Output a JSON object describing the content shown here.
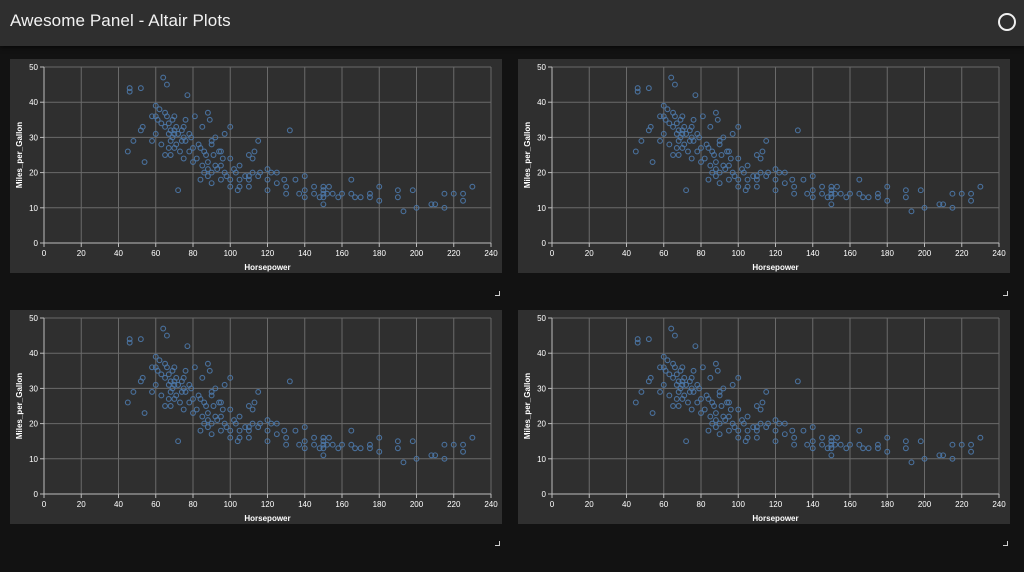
{
  "app": {
    "title": "Awesome Panel - Altair Plots"
  },
  "colors": {
    "header_bg": "#2f2f2f",
    "page_bg": "#121212",
    "card_bg": "#2f2f2f",
    "point": "#4c78a8",
    "grid": "#6a6a6a",
    "text": "#ffffff"
  },
  "icons": {
    "status": "circle-outline-icon",
    "resize": "resize-corner-icon"
  },
  "chart_data": {
    "type": "scatter",
    "xlabel": "Horsepower",
    "ylabel": "Miles_per_Gallon",
    "xlim": [
      0,
      240
    ],
    "ylim": [
      0,
      50
    ],
    "x_ticks": [
      0,
      20,
      40,
      60,
      80,
      100,
      120,
      140,
      160,
      180,
      200,
      220,
      240
    ],
    "y_ticks": [
      0,
      10,
      20,
      30,
      40,
      50
    ],
    "grid": true,
    "points": [
      [
        45,
        26
      ],
      [
        46,
        43
      ],
      [
        46,
        44
      ],
      [
        48,
        29
      ],
      [
        52,
        44
      ],
      [
        52,
        32
      ],
      [
        53,
        33
      ],
      [
        54,
        23
      ],
      [
        58,
        29
      ],
      [
        58,
        36
      ],
      [
        60,
        39
      ],
      [
        60,
        36
      ],
      [
        60,
        31
      ],
      [
        61,
        35
      ],
      [
        62,
        38
      ],
      [
        63,
        28
      ],
      [
        63,
        34
      ],
      [
        64,
        47
      ],
      [
        65,
        37
      ],
      [
        65,
        33
      ],
      [
        65,
        25
      ],
      [
        66,
        45
      ],
      [
        66,
        36
      ],
      [
        67,
        34
      ],
      [
        67,
        31
      ],
      [
        67,
        27
      ],
      [
        68,
        29
      ],
      [
        68,
        32
      ],
      [
        68,
        25
      ],
      [
        69,
        35
      ],
      [
        69,
        30
      ],
      [
        70,
        32
      ],
      [
        70,
        36
      ],
      [
        70,
        27
      ],
      [
        70,
        31
      ],
      [
        71,
        28
      ],
      [
        71,
        33
      ],
      [
        72,
        15
      ],
      [
        72,
        31
      ],
      [
        73,
        26
      ],
      [
        74,
        29
      ],
      [
        74,
        32
      ],
      [
        75,
        30
      ],
      [
        75,
        33
      ],
      [
        75,
        24
      ],
      [
        76,
        35
      ],
      [
        76,
        29
      ],
      [
        77,
        42
      ],
      [
        78,
        26
      ],
      [
        78,
        31
      ],
      [
        79,
        30
      ],
      [
        80,
        27
      ],
      [
        80,
        23
      ],
      [
        81,
        36
      ],
      [
        82,
        24
      ],
      [
        83,
        28
      ],
      [
        84,
        27
      ],
      [
        84,
        18
      ],
      [
        85,
        33
      ],
      [
        85,
        22
      ],
      [
        86,
        26
      ],
      [
        86,
        20
      ],
      [
        87,
        25
      ],
      [
        88,
        37
      ],
      [
        88,
        23
      ],
      [
        88,
        19
      ],
      [
        88,
        21
      ],
      [
        89,
        35
      ],
      [
        90,
        29
      ],
      [
        90,
        28
      ],
      [
        90,
        20
      ],
      [
        90,
        17
      ],
      [
        91,
        25
      ],
      [
        92,
        22
      ],
      [
        92,
        30
      ],
      [
        93,
        21
      ],
      [
        94,
        26
      ],
      [
        95,
        18
      ],
      [
        95,
        22
      ],
      [
        95,
        26
      ],
      [
        96,
        24
      ],
      [
        97,
        20
      ],
      [
        97,
        31
      ],
      [
        98,
        19
      ],
      [
        100,
        33
      ],
      [
        100,
        24
      ],
      [
        100,
        18
      ],
      [
        100,
        16
      ],
      [
        102,
        21
      ],
      [
        103,
        20
      ],
      [
        104,
        15
      ],
      [
        105,
        22
      ],
      [
        105,
        18
      ],
      [
        105,
        16
      ],
      [
        108,
        19
      ],
      [
        110,
        25
      ],
      [
        110,
        19
      ],
      [
        110,
        18
      ],
      [
        110,
        16
      ],
      [
        112,
        20
      ],
      [
        112,
        24
      ],
      [
        113,
        26
      ],
      [
        115,
        29
      ],
      [
        115,
        19
      ],
      [
        116,
        20
      ],
      [
        120,
        18
      ],
      [
        120,
        21
      ],
      [
        120,
        15
      ],
      [
        122,
        20
      ],
      [
        125,
        17
      ],
      [
        125,
        20
      ],
      [
        129,
        18
      ],
      [
        130,
        16
      ],
      [
        130,
        14
      ],
      [
        132,
        32
      ],
      [
        135,
        18
      ],
      [
        137,
        14
      ],
      [
        140,
        19
      ],
      [
        140,
        15
      ],
      [
        140,
        13
      ],
      [
        145,
        16
      ],
      [
        145,
        14
      ],
      [
        148,
        13
      ],
      [
        150,
        16
      ],
      [
        150,
        14
      ],
      [
        150,
        11
      ],
      [
        150,
        15
      ],
      [
        150,
        13
      ],
      [
        152,
        14
      ],
      [
        153,
        16
      ],
      [
        155,
        14
      ],
      [
        158,
        13
      ],
      [
        160,
        14
      ],
      [
        165,
        18
      ],
      [
        165,
        14
      ],
      [
        167,
        13
      ],
      [
        170,
        13
      ],
      [
        175,
        14
      ],
      [
        175,
        13
      ],
      [
        180,
        16
      ],
      [
        180,
        12
      ],
      [
        190,
        15
      ],
      [
        190,
        13
      ],
      [
        193,
        9
      ],
      [
        198,
        15
      ],
      [
        200,
        10
      ],
      [
        208,
        11
      ],
      [
        210,
        11
      ],
      [
        215,
        14
      ],
      [
        215,
        10
      ],
      [
        220,
        14
      ],
      [
        225,
        14
      ],
      [
        225,
        12
      ],
      [
        230,
        16
      ]
    ]
  }
}
